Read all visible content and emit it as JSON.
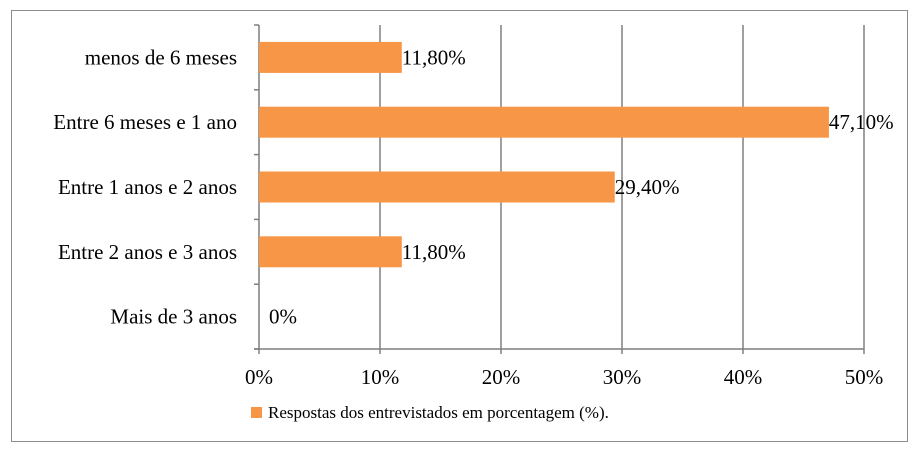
{
  "chart_data": {
    "type": "bar",
    "orientation": "horizontal",
    "categories": [
      "menos de 6 meses",
      "Entre 6 meses e 1 ano",
      "Entre 1 anos e 2 anos",
      "Entre 2 anos e 3 anos",
      "Mais de 3 anos"
    ],
    "series": [
      {
        "name": "Respostas dos entrevistados em porcentagem (%).",
        "values": [
          11.8,
          47.1,
          29.4,
          11.8,
          0
        ],
        "labels": [
          "11,80%",
          "47,10%",
          "29,40%",
          "11,80%",
          "0%"
        ],
        "color": "#F79646"
      }
    ],
    "xlim": [
      0,
      50
    ],
    "xticks": [
      "0%",
      "10%",
      "20%",
      "30%",
      "40%",
      "50%"
    ],
    "grid": true,
    "legend": "bottom"
  }
}
